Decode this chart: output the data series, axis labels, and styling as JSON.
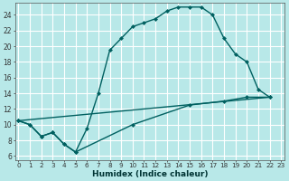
{
  "xlabel": "Humidex (Indice chaleur)",
  "bg_color": "#b8e8e8",
  "grid_color": "#ffffff",
  "line_color": "#006060",
  "xlim": [
    -0.3,
    23.3
  ],
  "ylim": [
    5.5,
    25.5
  ],
  "yticks": [
    6,
    8,
    10,
    12,
    14,
    16,
    18,
    20,
    22,
    24
  ],
  "xticks": [
    0,
    1,
    2,
    3,
    4,
    5,
    6,
    7,
    8,
    9,
    10,
    11,
    12,
    13,
    14,
    15,
    16,
    17,
    18,
    19,
    20,
    21,
    22,
    23
  ],
  "curve1_x": [
    0,
    1,
    2,
    3,
    4,
    5,
    6,
    7,
    8,
    9,
    10,
    11,
    12,
    13,
    14,
    15,
    16,
    17,
    18,
    19,
    20,
    21,
    22
  ],
  "curve1_y": [
    10.5,
    10.0,
    8.5,
    9.0,
    7.5,
    6.5,
    9.5,
    14.0,
    19.5,
    21.0,
    22.5,
    23.0,
    23.5,
    24.5,
    25.0,
    25.0,
    25.0,
    24.0,
    21.0,
    19.0,
    18.0,
    14.5,
    13.5
  ],
  "curve2_x": [
    0,
    1,
    2,
    3,
    4,
    5,
    10,
    15,
    18,
    20,
    22
  ],
  "curve2_y": [
    10.5,
    10.0,
    8.5,
    9.0,
    7.5,
    6.5,
    10.0,
    12.5,
    13.0,
    13.5,
    13.5
  ],
  "curve3_x": [
    0,
    22
  ],
  "curve3_y": [
    10.5,
    13.5
  ]
}
